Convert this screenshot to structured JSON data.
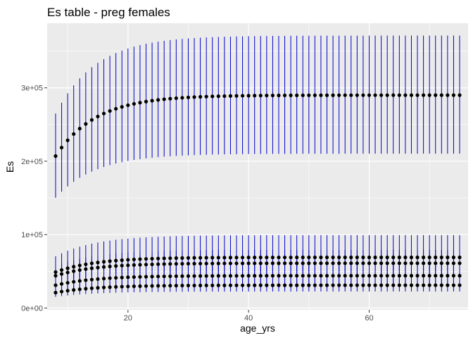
{
  "chart_data": {
    "type": "scatter",
    "title": "Es table - preg females",
    "xlabel": "age_yrs",
    "ylabel": "Es",
    "xlim": [
      6.6,
      76.4
    ],
    "ylim": [
      -2500,
      388000
    ],
    "x_range": [
      8,
      75
    ],
    "x_step": 1,
    "x_ticks": [
      20,
      40,
      60
    ],
    "x_tick_labels": [
      "20",
      "40",
      "60"
    ],
    "y_ticks": [
      0,
      100000,
      200000,
      300000
    ],
    "y_tick_labels": [
      "0e+00",
      "1e+05",
      "2e+05",
      "3e+05"
    ],
    "grid": true,
    "point_color": "#000000",
    "errorbar_color": "#0000cc",
    "panel_background": "#ebebeb",
    "grid_color": "#ffffff",
    "series": [
      {
        "start": 207000,
        "end": 290000,
        "lower_ratio": 0.725,
        "upper_ratio": 1.28,
        "rate": 0.15
      },
      {
        "start": 49000,
        "end": 69000,
        "lower_ratio": 0.725,
        "upper_ratio": 1.44,
        "rate": 0.15
      },
      {
        "start": 44000,
        "end": 61000,
        "lower_ratio": 0.725,
        "upper_ratio": 1.3,
        "rate": 0.15
      },
      {
        "start": 31000,
        "end": 44000,
        "lower_ratio": 0.725,
        "upper_ratio": 1.3,
        "rate": 0.15
      },
      {
        "start": 21000,
        "end": 31000,
        "lower_ratio": 0.725,
        "upper_ratio": 1.3,
        "rate": 0.15
      }
    ]
  }
}
